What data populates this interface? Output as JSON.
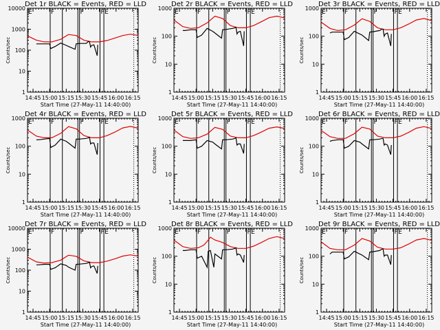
{
  "chart_data": [
    {
      "type": "line",
      "title": "Det 1r BLACK = Events, RED = LLD",
      "ylim": [
        1,
        10000
      ],
      "ylabel": "Counts/sec",
      "xlabel": "Start Time (27-May-11 14:40:00)",
      "yticks": [
        "1",
        "10",
        "100",
        "1000",
        "10000"
      ],
      "xticks": [
        "14:45",
        "15:00",
        "15:15",
        "15:30",
        "15:45",
        "16:00",
        "16:15"
      ],
      "attenuator_labels": [
        "E",
        "F",
        "F",
        "F",
        "E"
      ],
      "series": [
        {
          "name": "LLD",
          "color": "#e00000",
          "x": [
            0,
            8,
            15,
            22,
            30,
            37,
            44,
            51,
            58,
            65,
            72,
            79,
            86,
            93,
            100
          ],
          "values": [
            480,
            300,
            250,
            250,
            330,
            560,
            500,
            300,
            250,
            250,
            290,
            380,
            500,
            580,
            500
          ]
        },
        {
          "name": "Events",
          "color": "#000000",
          "x": [
            8,
            10,
            15,
            20,
            21,
            25,
            30,
            35,
            37,
            43,
            44,
            47,
            53,
            55,
            56,
            57,
            58,
            60,
            63,
            63.5
          ],
          "values": [
            200,
            200,
            200,
            200,
            120,
            150,
            220,
            170,
            150,
            110,
            200,
            210,
            210,
            260,
            250,
            140,
            170,
            180,
            55,
            180
          ]
        }
      ]
    },
    {
      "type": "line",
      "title": "Det 2r BLACK = Events, RED = LLD",
      "ylim": [
        1,
        1000
      ],
      "ylabel": "Counts/sec",
      "xlabel": "Start Time (27-May-11 14:40:00)",
      "yticks": [
        "1",
        "10",
        "100",
        "1000"
      ],
      "xticks": [
        "14:45",
        "15:00",
        "15:15",
        "15:30",
        "15:45",
        "16:00",
        "16:15"
      ],
      "attenuator_labels": [
        "E",
        "F",
        "F",
        "F",
        "E"
      ],
      "series": [
        {
          "name": "LLD",
          "color": "#e00000",
          "x": [
            0,
            8,
            15,
            22,
            30,
            37,
            44,
            51,
            58,
            65,
            72,
            79,
            86,
            93,
            100
          ],
          "values": [
            380,
            220,
            190,
            200,
            300,
            520,
            430,
            240,
            200,
            200,
            240,
            330,
            460,
            520,
            450
          ]
        },
        {
          "name": "Events",
          "color": "#000000",
          "x": [
            8,
            10,
            15,
            20,
            21,
            25,
            30,
            35,
            37,
            43,
            44,
            47,
            53,
            55,
            56,
            57,
            58,
            60,
            63,
            63.5
          ],
          "values": [
            160,
            160,
            170,
            170,
            90,
            110,
            190,
            150,
            130,
            85,
            170,
            175,
            190,
            200,
            210,
            120,
            140,
            150,
            45,
            150
          ]
        }
      ]
    },
    {
      "type": "line",
      "title": "Det 3r BLACK = Events, RED = LLD",
      "ylim": [
        1,
        1000
      ],
      "ylabel": "Counts/sec",
      "xlabel": "Start Time (27-May-11 14:40:00)",
      "yticks": [
        "1",
        "10",
        "100",
        "1000"
      ],
      "xticks": [
        "14:45",
        "15:00",
        "15:15",
        "15:30",
        "15:45",
        "16:00",
        "16:15"
      ],
      "attenuator_labels": [
        "E",
        "F",
        "F",
        "F",
        "E"
      ],
      "series": [
        {
          "name": "LLD",
          "color": "#e00000",
          "x": [
            0,
            8,
            15,
            22,
            30,
            37,
            44,
            51,
            58,
            65,
            72,
            79,
            86,
            93,
            100
          ],
          "values": [
            320,
            190,
            160,
            170,
            250,
            420,
            340,
            200,
            170,
            170,
            200,
            270,
            380,
            430,
            360
          ]
        },
        {
          "name": "Events",
          "color": "#000000",
          "x": [
            8,
            10,
            15,
            20,
            21,
            25,
            30,
            35,
            37,
            43,
            44,
            47,
            53,
            55,
            56,
            57,
            58,
            60,
            63,
            63.5
          ],
          "values": [
            130,
            140,
            140,
            140,
            75,
            90,
            150,
            120,
            110,
            70,
            140,
            145,
            160,
            180,
            180,
            100,
            120,
            130,
            45,
            120
          ]
        }
      ]
    },
    {
      "type": "line",
      "title": "Det 4r BLACK = Events, RED = LLD",
      "ylim": [
        1,
        1000
      ],
      "ylabel": "Counts/sec",
      "xlabel": "Start Time (27-May-11 14:40:00)",
      "yticks": [
        "1",
        "10",
        "100",
        "1000"
      ],
      "xticks": [
        "14:45",
        "15:00",
        "15:15",
        "15:30",
        "15:45",
        "16:00",
        "16:15"
      ],
      "attenuator_labels": [
        "E",
        "F",
        "F",
        "F",
        "E"
      ],
      "series": [
        {
          "name": "LLD",
          "color": "#e00000",
          "x": [
            0,
            8,
            15,
            22,
            30,
            37,
            44,
            51,
            58,
            65,
            72,
            79,
            86,
            93,
            100
          ],
          "values": [
            380,
            230,
            200,
            200,
            290,
            500,
            420,
            240,
            200,
            200,
            240,
            320,
            450,
            510,
            440
          ]
        },
        {
          "name": "Events",
          "color": "#000000",
          "x": [
            8,
            10,
            15,
            20,
            21,
            25,
            30,
            35,
            37,
            43,
            44,
            47,
            53,
            55,
            56,
            57,
            58,
            60,
            63,
            63.5
          ],
          "values": [
            170,
            170,
            180,
            190,
            90,
            110,
            180,
            150,
            130,
            85,
            180,
            180,
            190,
            200,
            210,
            120,
            130,
            130,
            50,
            130
          ]
        }
      ]
    },
    {
      "type": "line",
      "title": "Det 5r BLACK = Events, RED = LLD",
      "ylim": [
        1,
        1000
      ],
      "ylabel": "Counts/sec",
      "xlabel": "Start Time (27-May-11 14:40:00)",
      "yticks": [
        "1",
        "10",
        "100",
        "1000"
      ],
      "xticks": [
        "14:45",
        "15:00",
        "15:15",
        "15:30",
        "15:45",
        "16:00",
        "16:15"
      ],
      "attenuator_labels": [
        "E",
        "F",
        "F",
        "F",
        "E"
      ],
      "series": [
        {
          "name": "LLD",
          "color": "#e00000",
          "x": [
            0,
            8,
            15,
            22,
            30,
            37,
            44,
            51,
            58,
            65,
            72,
            79,
            86,
            93,
            100
          ],
          "values": [
            380,
            220,
            190,
            200,
            270,
            470,
            400,
            230,
            200,
            200,
            240,
            320,
            440,
            490,
            430
          ]
        },
        {
          "name": "Events",
          "color": "#000000",
          "x": [
            8,
            10,
            15,
            20,
            21,
            25,
            30,
            35,
            37,
            43,
            44,
            47,
            53,
            55,
            56,
            57,
            58,
            60,
            63,
            63.5
          ],
          "values": [
            160,
            160,
            160,
            170,
            85,
            100,
            160,
            140,
            120,
            80,
            170,
            170,
            180,
            190,
            200,
            110,
            120,
            120,
            55,
            120
          ]
        }
      ]
    },
    {
      "type": "line",
      "title": "Det 6r BLACK = Events, RED = LLD",
      "ylim": [
        1,
        1000
      ],
      "ylabel": "Counts/sec",
      "xlabel": "Start Time (27-May-11 14:40:00)",
      "yticks": [
        "1",
        "10",
        "100",
        "1000"
      ],
      "xticks": [
        "14:45",
        "15:00",
        "15:15",
        "15:30",
        "15:45",
        "16:00",
        "16:15"
      ],
      "attenuator_labels": [
        "E",
        "F",
        "F",
        "F",
        "E"
      ],
      "series": [
        {
          "name": "LLD",
          "color": "#e00000",
          "x": [
            0,
            8,
            15,
            22,
            30,
            37,
            44,
            51,
            58,
            65,
            72,
            79,
            86,
            93,
            100
          ],
          "values": [
            370,
            220,
            190,
            190,
            280,
            480,
            410,
            230,
            200,
            200,
            230,
            310,
            440,
            500,
            430
          ]
        },
        {
          "name": "Events",
          "color": "#000000",
          "x": [
            8,
            10,
            15,
            20,
            21,
            25,
            30,
            35,
            37,
            43,
            44,
            47,
            53,
            55,
            56,
            57,
            58,
            60,
            63,
            63.5
          ],
          "values": [
            150,
            160,
            170,
            170,
            85,
            100,
            160,
            140,
            120,
            80,
            170,
            170,
            180,
            190,
            190,
            110,
            120,
            110,
            50,
            110
          ]
        }
      ]
    },
    {
      "type": "line",
      "title": "Det 7r BLACK = Events, RED = LLD",
      "ylim": [
        1,
        10000
      ],
      "ylabel": "Counts/sec",
      "xlabel": "Start Time (27-May-11 14:40:00)",
      "yticks": [
        "1",
        "10",
        "100",
        "1000",
        "10000"
      ],
      "xticks": [
        "14:45",
        "15:00",
        "15:15",
        "15:30",
        "15:45",
        "16:00",
        "16:15"
      ],
      "attenuator_labels": [
        "E",
        "F",
        "F",
        "F",
        "E"
      ],
      "series": [
        {
          "name": "LLD",
          "color": "#e00000",
          "x": [
            0,
            8,
            15,
            22,
            30,
            37,
            44,
            51,
            58,
            65,
            72,
            79,
            86,
            93,
            100
          ],
          "values": [
            420,
            250,
            220,
            230,
            300,
            520,
            460,
            280,
            230,
            230,
            270,
            350,
            470,
            540,
            470
          ]
        },
        {
          "name": "Events",
          "color": "#000000",
          "x": [
            8,
            10,
            15,
            20,
            21,
            25,
            30,
            35,
            37,
            43,
            44,
            47,
            53,
            55,
            56,
            57,
            58,
            60,
            63,
            63.5
          ],
          "values": [
            180,
            180,
            190,
            190,
            110,
            130,
            200,
            170,
            140,
            100,
            190,
            195,
            210,
            230,
            240,
            130,
            150,
            160,
            70,
            160
          ]
        }
      ]
    },
    {
      "type": "line",
      "title": "Det 8r BLACK = Events, RED = LLD",
      "ylim": [
        1,
        1000
      ],
      "ylabel": "Counts/sec",
      "xlabel": "Start Time (27-May-11 14:40:00)",
      "yticks": [
        "1",
        "10",
        "100",
        "1000"
      ],
      "xticks": [
        "14:45",
        "15:00",
        "15:15",
        "15:30",
        "15:45",
        "16:00",
        "16:15"
      ],
      "attenuator_labels": [
        "E",
        "F",
        "F",
        "F",
        "E"
      ],
      "series": [
        {
          "name": "LLD",
          "color": "#e00000",
          "x": [
            0,
            8,
            15,
            22,
            27,
            30,
            33,
            37,
            44,
            51,
            58,
            65,
            72,
            79,
            86,
            93,
            100
          ],
          "values": [
            380,
            220,
            190,
            200,
            250,
            340,
            480,
            380,
            310,
            220,
            190,
            190,
            230,
            310,
            430,
            500,
            430
          ]
        },
        {
          "name": "Events",
          "color": "#000000",
          "x": [
            8,
            10,
            15,
            20,
            21,
            25,
            30,
            31,
            33,
            36,
            37,
            43,
            44,
            47,
            53,
            55,
            56,
            57,
            58,
            60,
            63,
            63.5
          ],
          "values": [
            160,
            160,
            170,
            170,
            85,
            100,
            40,
            150,
            160,
            40,
            120,
            80,
            170,
            170,
            180,
            190,
            200,
            110,
            120,
            110,
            60,
            110
          ]
        }
      ]
    },
    {
      "type": "line",
      "title": "Det 9r BLACK = Events, RED = LLD",
      "ylim": [
        1,
        1000
      ],
      "ylabel": "Counts/sec",
      "xlabel": "Start Time (27-May-11 14:40:00)",
      "yticks": [
        "1",
        "10",
        "100",
        "1000"
      ],
      "xticks": [
        "14:45",
        "15:00",
        "15:15",
        "15:30",
        "15:45",
        "16:00",
        "16:15"
      ],
      "attenuator_labels": [
        "E",
        "F",
        "F",
        "F",
        "E"
      ],
      "series": [
        {
          "name": "LLD",
          "color": "#e00000",
          "x": [
            0,
            8,
            15,
            22,
            30,
            37,
            44,
            51,
            58,
            65,
            72,
            79,
            86,
            93,
            100
          ],
          "values": [
            330,
            190,
            170,
            170,
            250,
            430,
            350,
            210,
            180,
            180,
            200,
            270,
            380,
            430,
            370
          ]
        },
        {
          "name": "Events",
          "color": "#000000",
          "x": [
            8,
            10,
            15,
            20,
            21,
            25,
            30,
            35,
            37,
            43,
            44,
            47,
            53,
            55,
            56,
            57,
            58,
            60,
            63,
            63.5
          ],
          "values": [
            120,
            140,
            140,
            140,
            80,
            95,
            150,
            120,
            110,
            75,
            140,
            145,
            160,
            180,
            180,
            100,
            110,
            110,
            50,
            110
          ]
        }
      ]
    }
  ],
  "vertical_markers_minutes": [
    20.5,
    31.5,
    45.5,
    47,
    65.5,
    69
  ],
  "dotted_marker_minutes": 96
}
